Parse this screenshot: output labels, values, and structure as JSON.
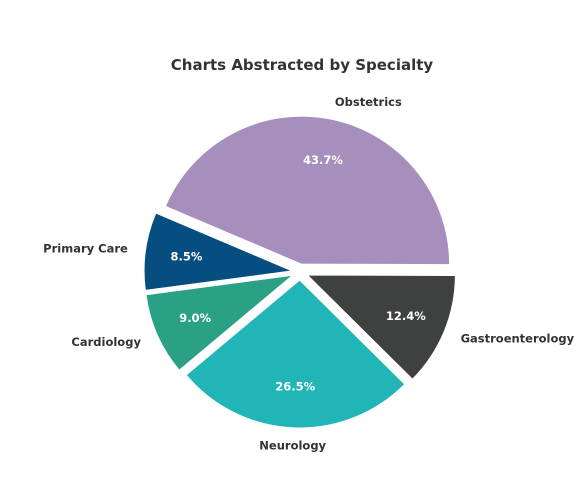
{
  "chart_data": {
    "type": "pie",
    "title": "Charts Abstracted by Specialty",
    "slices": [
      {
        "label": "Obstetrics",
        "value": 43.7,
        "display": "43.7%",
        "color": "#a78fbd"
      },
      {
        "label": "Gastroenterology",
        "value": 12.4,
        "display": "12.4%",
        "color": "#3f4140"
      },
      {
        "label": "Neurology",
        "value": 26.5,
        "display": "26.5%",
        "color": "#21b5b8"
      },
      {
        "label": "Cardiology",
        "value": 9.0,
        "display": "9.0%",
        "color": "#2aa085"
      },
      {
        "label": "Primary Care",
        "value": 8.5,
        "display": "8.5%",
        "color": "#064e80"
      }
    ],
    "start_angle_deg": 157,
    "direction": "clockwise",
    "exploded": true
  }
}
